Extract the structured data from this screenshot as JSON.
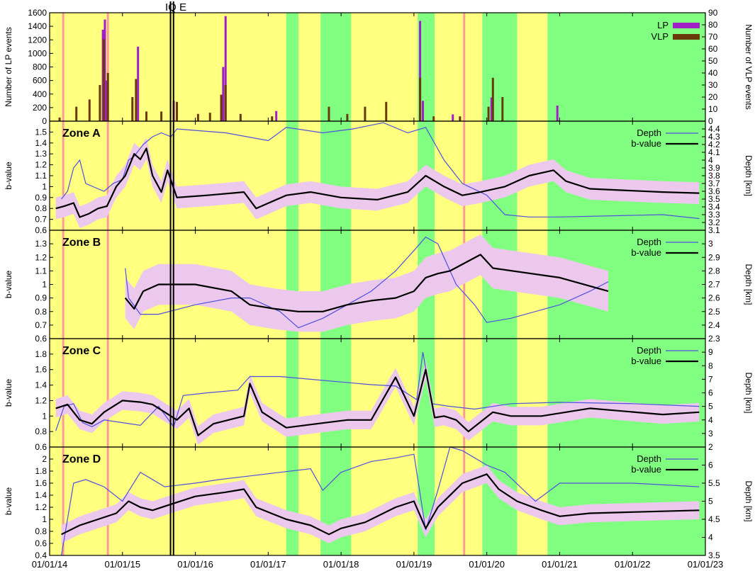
{
  "figure": {
    "event_marker": "IQ E",
    "x_tick_labels": [
      "01/01/14",
      "01/01/15",
      "01/01/16",
      "01/01/17",
      "01/01/18",
      "01/01/19",
      "01/01/20",
      "01/01/21",
      "01/01/22",
      "01/01/23"
    ],
    "colors": {
      "yellow_background": "#ffff80",
      "green_background": "#80ff80",
      "pink_band": "#ecc8ec",
      "red_line": "#ff9a9a",
      "depth_line": "#5050e0",
      "b_value_line": "#000000",
      "lp_bars": "#a020c8",
      "vlp_bars": "#6b3a0a"
    },
    "x_axis_date_range": [
      "2014-01-01",
      "2023-01-01"
    ],
    "green_periods": [
      [
        "2017-04-01",
        "2017-06-01"
      ],
      [
        "2017-09-20",
        "2018-02-20"
      ],
      [
        "2019-01-20",
        "2019-04-15"
      ],
      [
        "2019-12-10",
        "2020-06-01"
      ],
      [
        "2020-11-01",
        "2023-01-01"
      ]
    ],
    "red_markers": [
      "2014-03-10",
      "2014-10-20",
      "2019-09-10"
    ],
    "iqe_lines": [
      "2015-08-30",
      "2015-09-14"
    ]
  },
  "chart_data": [
    {
      "type": "bar",
      "panel": "events",
      "ylabel_left": "Number of LP events",
      "ylabel_right": "Number of VLP events",
      "ylim_left": [
        0,
        1600
      ],
      "ylim_right": [
        0,
        90
      ],
      "yticks_left": [
        "0",
        "200",
        "400",
        "600",
        "800",
        "1000",
        "1200",
        "1400",
        "1600"
      ],
      "yticks_right": [
        "0",
        "10",
        "20",
        "30",
        "40",
        "50",
        "60",
        "70",
        "80",
        "90"
      ],
      "legend_position": "top-right",
      "series": [
        {
          "name": "LP",
          "color": "#a020c8",
          "x": [
            "2014-09-25",
            "2014-10-05",
            "2014-10-15",
            "2015-03-20",
            "2015-09-15",
            "2016-05-20",
            "2016-06-01",
            "2017-02-10",
            "2019-02-01",
            "2019-02-15",
            "2019-07-15",
            "2020-01-25",
            "2020-12-20"
          ],
          "values": [
            1350,
            1500,
            600,
            1100,
            300,
            800,
            1550,
            150,
            1480,
            300,
            100,
            350,
            230
          ]
        },
        {
          "name": "VLP",
          "color": "#6b3a0a",
          "x": [
            "2014-02-20",
            "2014-05-15",
            "2014-07-20",
            "2014-09-10",
            "2014-09-30",
            "2014-10-20",
            "2015-02-20",
            "2015-03-10",
            "2015-05-01",
            "2015-07-15",
            "2015-10-01",
            "2016-01-15",
            "2016-03-15",
            "2016-05-10",
            "2016-06-01",
            "2016-08-15",
            "2017-01-20",
            "2017-11-01",
            "2018-02-01",
            "2018-05-01",
            "2018-08-15",
            "2019-02-01",
            "2019-04-10",
            "2019-08-20",
            "2020-01-10",
            "2020-02-01",
            "2020-03-20"
          ],
          "values": [
            3,
            12,
            18,
            30,
            68,
            40,
            20,
            35,
            8,
            8,
            16,
            6,
            7,
            22,
            30,
            6,
            4,
            12,
            6,
            12,
            16,
            36,
            4,
            4,
            12,
            36,
            20
          ]
        }
      ]
    },
    {
      "type": "line",
      "panel": "Zone A",
      "title": "Zone A",
      "ylabel_left": "b-value",
      "ylabel_right": "Depth [km]",
      "ylim_left": [
        0.6,
        1.6
      ],
      "ylim_right": [
        3.1,
        4.5
      ],
      "yticks_left": [
        "0.6",
        "0.7",
        "0.8",
        "0.9",
        "1",
        "1.1",
        "1.2",
        "1.3",
        "1.4",
        "1.5"
      ],
      "yticks_right": [
        "3.1",
        "3.2",
        "3.3",
        "3.4",
        "3.5",
        "3.6",
        "3.7",
        "3.8",
        "3.9",
        "4",
        "4.1",
        "4.2",
        "4.3",
        "4.4"
      ],
      "legend_position": "top-right",
      "band_halfwidth": 0.1,
      "series": [
        {
          "name": "Depth",
          "axis": "right",
          "x": [
            "2014-03-01",
            "2014-04-01",
            "2014-05-01",
            "2014-06-01",
            "2014-07-01",
            "2014-08-15",
            "2014-10-01",
            "2014-11-15",
            "2015-01-01",
            "2015-02-01",
            "2015-03-01",
            "2015-04-15",
            "2015-06-01",
            "2015-07-15",
            "2015-09-01",
            "2015-10-01",
            "2016-06-01",
            "2017-01-01",
            "2017-04-01",
            "2017-10-01",
            "2018-03-01",
            "2018-08-01",
            "2018-12-01",
            "2019-03-01",
            "2019-06-01",
            "2019-09-01",
            "2020-01-01",
            "2020-04-01",
            "2020-08-01",
            "2021-01-01",
            "2022-06-01",
            "2022-12-01"
          ],
          "values": [
            3.5,
            3.6,
            3.9,
            4.0,
            3.7,
            3.65,
            3.6,
            3.7,
            3.75,
            4.0,
            4.05,
            4.2,
            4.3,
            4.35,
            4.3,
            4.4,
            4.35,
            4.25,
            4.42,
            4.35,
            4.4,
            4.48,
            4.35,
            4.42,
            4.0,
            3.7,
            3.55,
            3.3,
            3.27,
            3.27,
            3.3,
            3.25
          ]
        },
        {
          "name": "b-value",
          "axis": "left",
          "x": [
            "2014-02-01",
            "2014-03-15",
            "2014-05-01",
            "2014-06-01",
            "2014-07-15",
            "2014-09-01",
            "2014-10-15",
            "2014-12-01",
            "2015-01-15",
            "2015-03-01",
            "2015-04-01",
            "2015-05-01",
            "2015-06-01",
            "2015-07-15",
            "2015-08-15",
            "2015-10-01",
            "2016-03-01",
            "2016-09-01",
            "2016-11-01",
            "2017-04-01",
            "2017-08-01",
            "2018-01-01",
            "2018-07-01",
            "2018-12-01",
            "2019-03-01",
            "2019-06-01",
            "2019-09-01",
            "2019-12-01",
            "2020-04-01",
            "2020-08-01",
            "2020-12-01",
            "2021-02-01",
            "2021-06-01",
            "2022-06-01",
            "2022-12-01"
          ],
          "values": [
            0.8,
            0.82,
            0.85,
            0.72,
            0.75,
            0.8,
            0.82,
            1.0,
            1.1,
            1.3,
            1.25,
            1.35,
            1.1,
            0.95,
            1.15,
            0.9,
            0.92,
            0.95,
            0.8,
            0.92,
            0.95,
            0.9,
            0.88,
            0.95,
            1.1,
            1.0,
            0.92,
            0.95,
            1.0,
            1.1,
            1.15,
            1.05,
            0.98,
            0.95,
            0.94
          ]
        }
      ]
    },
    {
      "type": "line",
      "panel": "Zone B",
      "title": "Zone B",
      "ylabel_left": "b-value",
      "ylabel_right": "Depth [km]",
      "ylim_left": [
        0.6,
        1.4
      ],
      "ylim_right": [
        2.3,
        3.1
      ],
      "yticks_left": [
        "0.6",
        "0.7",
        "0.8",
        "0.9",
        "1",
        "1.1",
        "1.2",
        "1.3"
      ],
      "yticks_right": [
        "2.3",
        "2.4",
        "2.5",
        "2.6",
        "2.7",
        "2.8",
        "2.9",
        "3"
      ],
      "legend_position": "top-right",
      "band_halfwidth": 0.15,
      "series": [
        {
          "name": "Depth",
          "axis": "right",
          "x": [
            "2015-01-15",
            "2015-02-01",
            "2015-04-01",
            "2015-07-01",
            "2016-01-01",
            "2016-07-01",
            "2016-10-01",
            "2017-03-01",
            "2017-06-01",
            "2017-10-01",
            "2018-02-01",
            "2018-06-01",
            "2018-10-01",
            "2019-01-01",
            "2019-03-01",
            "2019-05-01",
            "2019-08-01",
            "2019-11-01",
            "2020-01-01",
            "2020-05-01",
            "2021-01-01",
            "2021-06-01",
            "2021-09-01"
          ],
          "values": [
            2.82,
            2.6,
            2.48,
            2.48,
            2.55,
            2.6,
            2.6,
            2.5,
            2.38,
            2.45,
            2.55,
            2.65,
            2.8,
            2.95,
            3.05,
            3.0,
            2.7,
            2.55,
            2.42,
            2.45,
            2.55,
            2.65,
            2.72
          ]
        },
        {
          "name": "b-value",
          "axis": "left",
          "x": [
            "2015-01-15",
            "2015-03-01",
            "2015-04-15",
            "2015-07-01",
            "2016-01-01",
            "2016-07-01",
            "2016-10-01",
            "2017-02-01",
            "2017-06-01",
            "2017-10-01",
            "2018-02-01",
            "2018-06-01",
            "2018-10-01",
            "2019-01-01",
            "2019-03-01",
            "2019-05-01",
            "2019-07-01",
            "2019-12-01",
            "2020-02-01",
            "2021-01-01",
            "2021-09-01"
          ],
          "values": [
            0.9,
            0.82,
            0.95,
            1.0,
            1.0,
            0.95,
            0.85,
            0.82,
            0.8,
            0.8,
            0.85,
            0.88,
            0.9,
            0.95,
            1.05,
            1.08,
            1.1,
            1.22,
            1.12,
            1.05,
            0.95
          ]
        }
      ]
    },
    {
      "type": "line",
      "panel": "Zone C",
      "title": "Zone C",
      "ylabel_left": "b-value",
      "ylabel_right": "Depth [km]",
      "ylim_left": [
        0.6,
        2.0
      ],
      "ylim_right": [
        2,
        10
      ],
      "yticks_left": [
        "0.6",
        "0.8",
        "1",
        "1.2",
        "1.4",
        "1.6",
        "1.8"
      ],
      "yticks_right": [
        "2",
        "3",
        "4",
        "5",
        "6",
        "7",
        "8",
        "9"
      ],
      "legend_position": "top-right",
      "band_halfwidth": 0.12,
      "series": [
        {
          "name": "Depth",
          "axis": "right",
          "x": [
            "2014-02-01",
            "2014-03-15",
            "2014-05-01",
            "2014-06-15",
            "2014-08-01",
            "2014-10-01",
            "2015-01-01",
            "2015-04-01",
            "2015-07-01",
            "2015-09-15",
            "2015-11-01",
            "2016-03-01",
            "2016-08-01",
            "2016-10-01",
            "2017-03-01",
            "2017-08-01",
            "2018-01-01",
            "2018-06-01",
            "2018-10-01",
            "2019-01-15",
            "2019-02-15",
            "2019-04-01",
            "2019-07-01",
            "2019-11-01",
            "2020-05-01",
            "2021-01-01",
            "2022-01-01",
            "2022-12-01"
          ],
          "values": [
            3.2,
            5.0,
            5.2,
            3.8,
            3.5,
            4.0,
            3.8,
            3.6,
            5.0,
            3.5,
            5.8,
            6.0,
            6.2,
            7.2,
            7.2,
            7.0,
            6.8,
            6.6,
            6.5,
            5.5,
            9.0,
            5.2,
            5.0,
            4.8,
            5.2,
            5.3,
            5.2,
            5.0
          ]
        },
        {
          "name": "b-value",
          "axis": "left",
          "x": [
            "2014-02-01",
            "2014-04-01",
            "2014-06-01",
            "2014-08-01",
            "2014-10-01",
            "2015-01-01",
            "2015-04-01",
            "2015-06-01",
            "2015-08-01",
            "2015-10-01",
            "2015-12-01",
            "2016-01-15",
            "2016-04-01",
            "2016-09-01",
            "2016-10-01",
            "2016-12-01",
            "2017-04-01",
            "2017-09-01",
            "2018-02-01",
            "2018-06-01",
            "2018-10-01",
            "2019-01-01",
            "2019-03-01",
            "2019-04-15",
            "2019-06-01",
            "2019-08-01",
            "2019-10-01",
            "2020-02-01",
            "2020-05-01",
            "2020-10-01",
            "2021-06-01",
            "2022-06-01",
            "2022-12-01"
          ],
          "values": [
            1.1,
            1.15,
            0.95,
            0.9,
            1.05,
            1.2,
            1.18,
            1.15,
            1.05,
            0.95,
            1.1,
            0.75,
            0.9,
            1.0,
            1.42,
            1.05,
            0.85,
            0.9,
            0.95,
            0.95,
            1.5,
            1.0,
            1.6,
            0.98,
            1.0,
            0.95,
            0.8,
            1.05,
            1.0,
            1.0,
            1.1,
            1.02,
            1.05
          ]
        }
      ]
    },
    {
      "type": "line",
      "panel": "Zone D",
      "title": "Zone D",
      "ylabel_left": "b-value",
      "ylabel_right": "Depth [km]",
      "ylim_left": [
        0.4,
        2.2
      ],
      "ylim_right": [
        3.5,
        6.5
      ],
      "yticks_left": [
        "0.4",
        "0.6",
        "0.8",
        "1",
        "1.2",
        "1.4",
        "1.6",
        "1.8",
        "2"
      ],
      "yticks_right": [
        "3.5",
        "4",
        "4.5",
        "5",
        "5.5",
        "6"
      ],
      "legend_position": "top-right",
      "band_halfwidth": 0.15,
      "series": [
        {
          "name": "Depth",
          "axis": "right",
          "x": [
            "2014-03-01",
            "2014-05-01",
            "2014-07-01",
            "2014-10-01",
            "2015-01-01",
            "2015-04-01",
            "2015-08-01",
            "2016-01-01",
            "2016-05-01",
            "2016-10-01",
            "2017-03-01",
            "2017-08-01",
            "2017-10-01",
            "2018-01-01",
            "2018-06-01",
            "2018-10-01",
            "2019-01-01",
            "2019-03-01",
            "2019-05-01",
            "2019-07-01",
            "2019-09-01",
            "2020-01-01",
            "2020-04-01",
            "2020-09-01",
            "2021-01-01",
            "2022-01-01",
            "2022-12-01"
          ],
          "values": [
            3.5,
            5.5,
            5.6,
            5.4,
            5.0,
            5.8,
            5.4,
            5.5,
            5.6,
            5.7,
            5.8,
            5.9,
            5.3,
            5.8,
            6.1,
            6.2,
            6.3,
            4.2,
            5.3,
            6.5,
            6.4,
            6.0,
            5.8,
            5.0,
            5.5,
            5.5,
            5.4
          ]
        },
        {
          "name": "b-value",
          "axis": "left",
          "x": [
            "2014-03-01",
            "2014-06-01",
            "2014-09-01",
            "2014-12-01",
            "2015-02-01",
            "2015-04-01",
            "2015-06-01",
            "2015-09-01",
            "2016-01-01",
            "2016-06-01",
            "2016-09-01",
            "2016-11-01",
            "2017-04-01",
            "2017-08-01",
            "2017-11-01",
            "2018-01-01",
            "2018-05-01",
            "2018-10-01",
            "2019-01-01",
            "2019-03-01",
            "2019-05-01",
            "2019-09-01",
            "2020-01-01",
            "2020-03-01",
            "2020-06-01",
            "2020-10-01",
            "2021-01-01",
            "2021-06-01",
            "2022-01-01",
            "2022-12-01"
          ],
          "values": [
            0.75,
            0.9,
            1.0,
            1.1,
            1.3,
            1.2,
            1.15,
            1.25,
            1.38,
            1.45,
            1.5,
            1.2,
            1.0,
            0.9,
            0.75,
            0.85,
            0.95,
            1.2,
            1.3,
            0.85,
            1.2,
            1.6,
            1.75,
            1.5,
            1.3,
            1.15,
            1.05,
            1.1,
            1.12,
            1.15
          ]
        }
      ]
    }
  ]
}
